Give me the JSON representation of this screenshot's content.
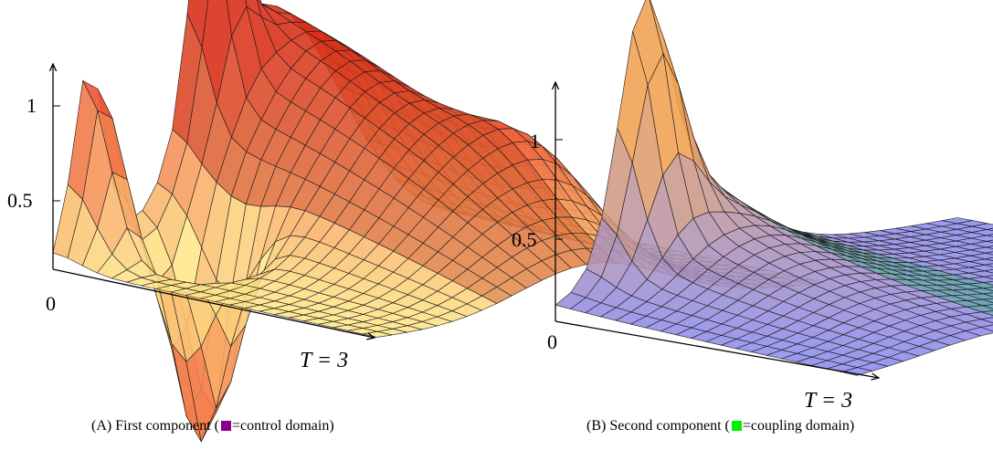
{
  "panels": [
    {
      "id": "a",
      "ticks": [
        "1",
        "0.5",
        "0"
      ],
      "t_label": "T = 3",
      "caption": {
        "tag": "(A)",
        "before": "First component (",
        "legend_text": "=control domain)",
        "swatch_color": "#8b008b"
      },
      "colors": {
        "high": "#e8180f",
        "low": "#ffe88a",
        "band": "#c4401a"
      }
    },
    {
      "id": "b",
      "ticks": [
        "1",
        "0.5",
        "0"
      ],
      "t_label": "T = 3",
      "caption": {
        "tag": "(B)",
        "before": "Second component (",
        "legend_text": "=coupling domain)",
        "swatch_color": "#00ee00"
      },
      "colors": {
        "high": "#f0a050",
        "low": "#8c8cf0",
        "band": "#20a870"
      }
    }
  ]
}
